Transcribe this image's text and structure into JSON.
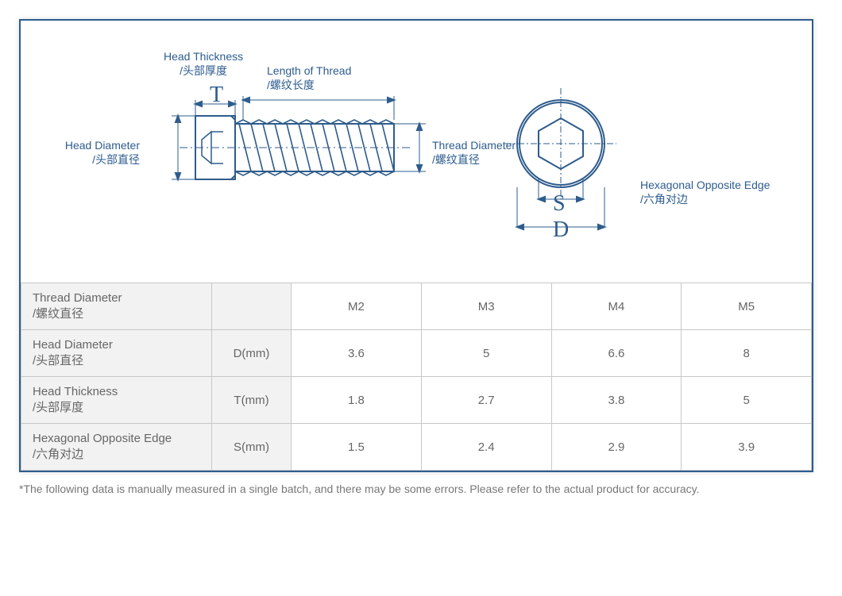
{
  "labels": {
    "headThickness": {
      "en": "Head Thickness",
      "zh": "/头部厚度"
    },
    "lengthOfThread": {
      "en": "Length of Thread",
      "zh": "/螺纹长度"
    },
    "headDiameter": {
      "en": "Head Diameter",
      "zh": "/头部直径"
    },
    "threadDiameter": {
      "en": "Thread Diameter",
      "zh": "/螺纹直径"
    },
    "hexEdge": {
      "en": "Hexagonal Opposite Edge",
      "zh": "/六角对边"
    }
  },
  "letters": {
    "T": "T",
    "S": "S",
    "D": "D"
  },
  "table": {
    "rows": [
      {
        "label_en": "Thread Diameter",
        "label_zh": "/螺纹直径",
        "unit": "",
        "v": [
          "M2",
          "M3",
          "M4",
          "M5"
        ]
      },
      {
        "label_en": "Head Diameter",
        "label_zh": "/头部直径",
        "unit": "D(mm)",
        "v": [
          "3.6",
          "5",
          "6.6",
          "8"
        ]
      },
      {
        "label_en": "Head Thickness",
        "label_zh": "/头部厚度",
        "unit": "T(mm)",
        "v": [
          "1.8",
          "2.7",
          "3.8",
          "5"
        ]
      },
      {
        "label_en": "Hexagonal Opposite Edge",
        "label_zh": "/六角对边",
        "unit": "S(mm)",
        "v": [
          "1.5",
          "2.4",
          "2.9",
          "3.9"
        ]
      }
    ]
  },
  "footnote": "*The following data is manually measured in a single batch, and there may be some errors. Please refer to the actual product for accuracy.",
  "style": {
    "border_color": "#2d5c8f",
    "label_color": "#2d5c8f",
    "table_border": "#c7c7c7",
    "table_text": "#666666",
    "shade_bg": "#f2f2f2",
    "diagram_stroke": "#2e5c8c",
    "letter_font": "Times New Roman"
  }
}
